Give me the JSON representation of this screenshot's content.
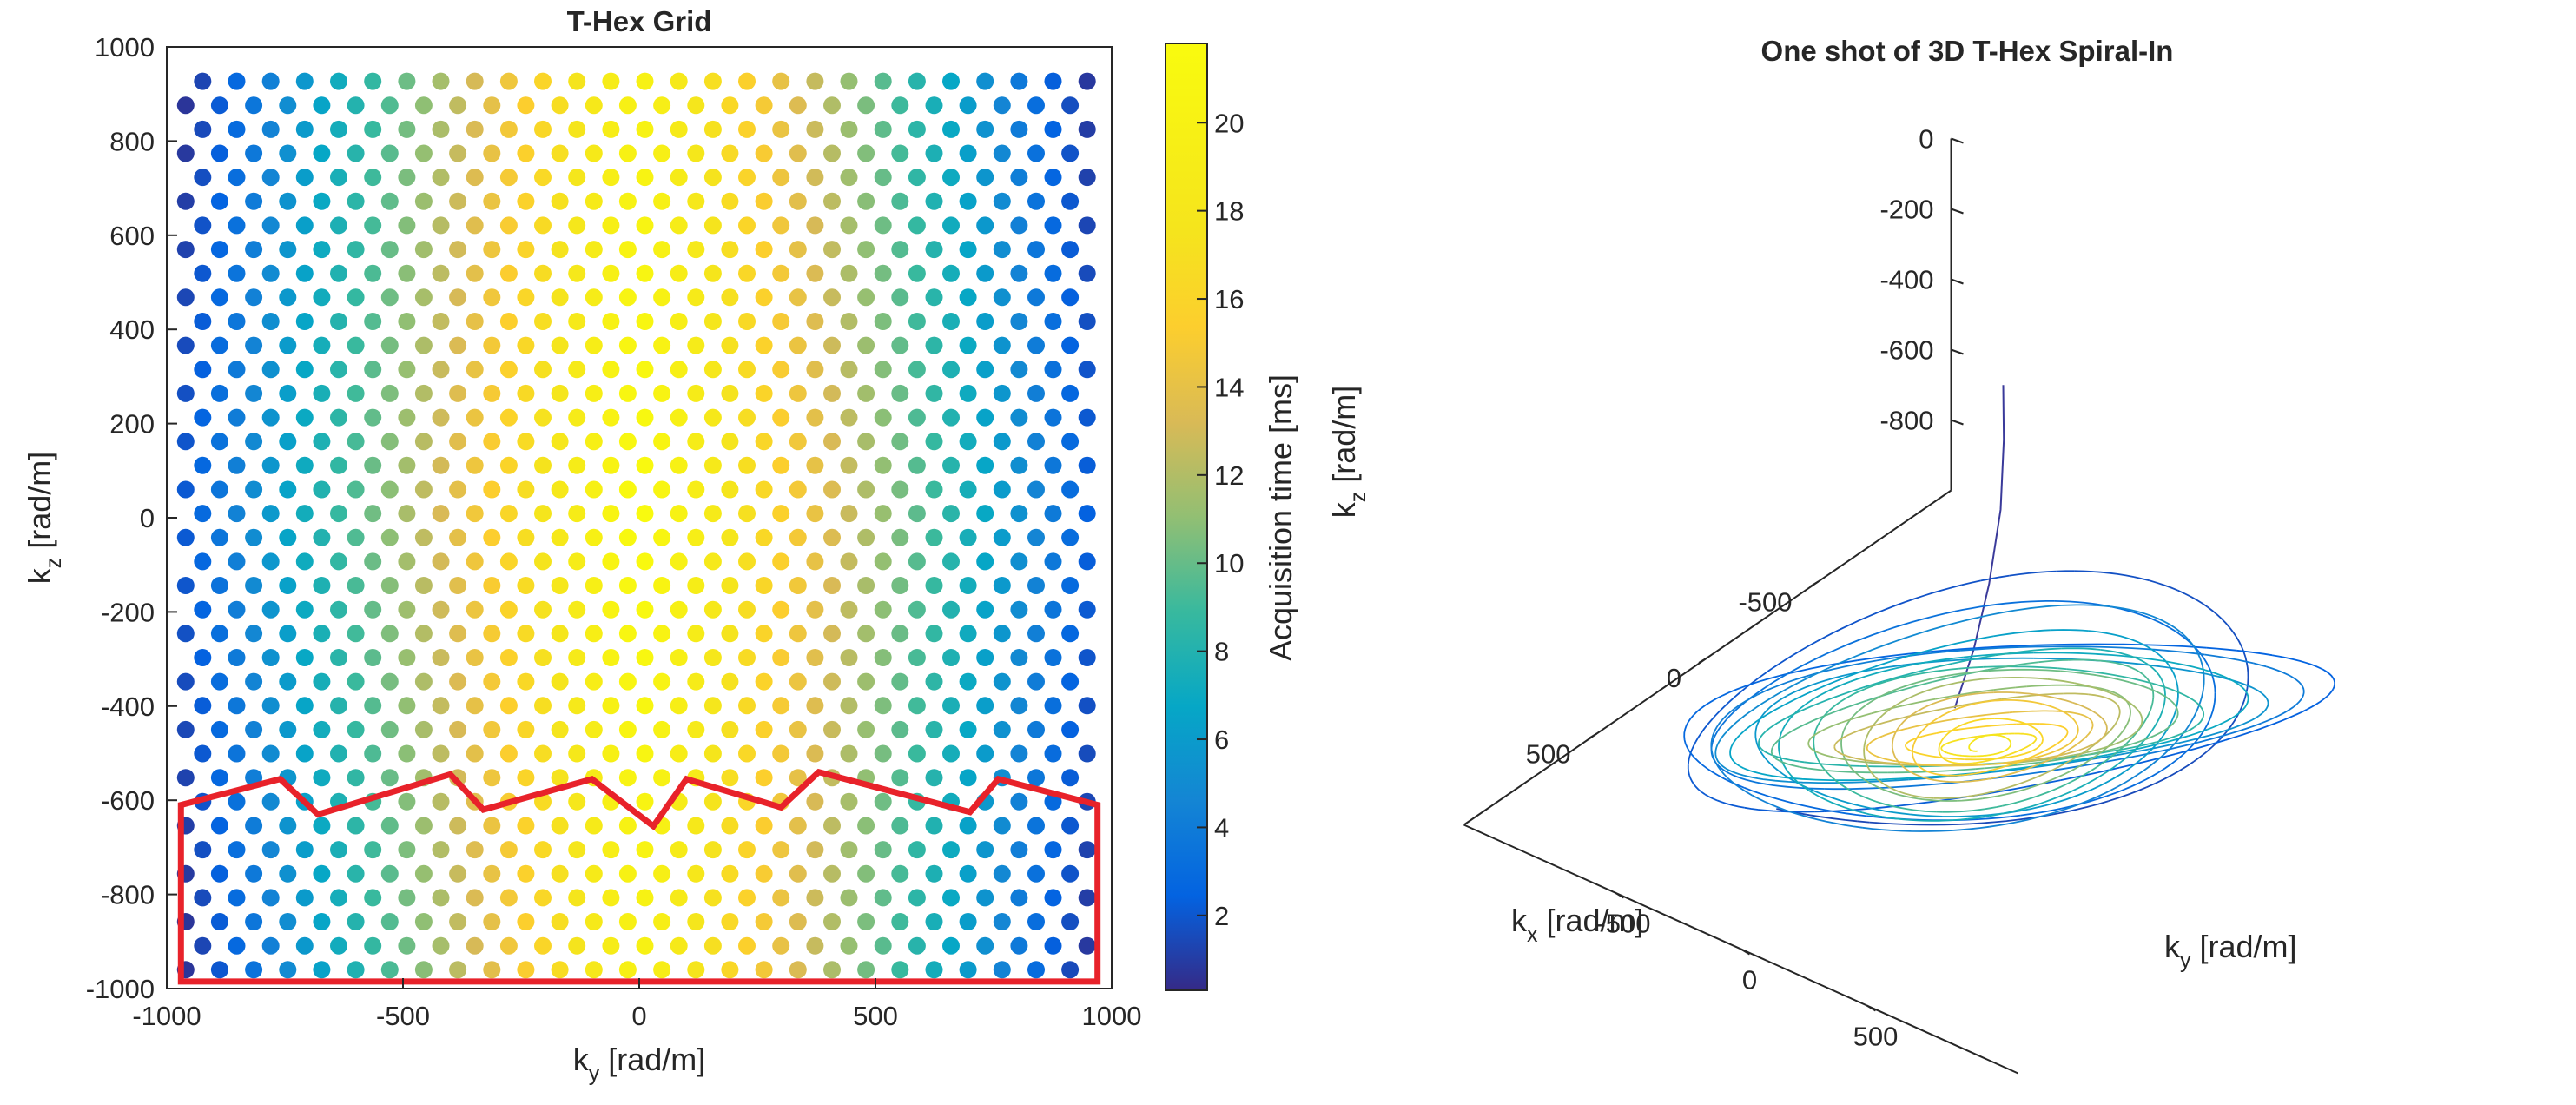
{
  "chart_data": [
    {
      "type": "scatter",
      "title": "T-Hex Grid",
      "xlabel": "k",
      "xlabel_sub": "y",
      "xlabel_unit": "[rad/m]",
      "ylabel": "k",
      "ylabel_sub": "z",
      "ylabel_unit": "[rad/m]",
      "xlim": [
        -1000,
        1000
      ],
      "ylim": [
        -1000,
        1000
      ],
      "xticks": [
        "-1000",
        "-500",
        "0",
        "500",
        "1000"
      ],
      "yticks": [
        "1000",
        "800",
        "600",
        "400",
        "200",
        "0",
        "-200",
        "-400",
        "-600",
        "-800",
        "-1000"
      ],
      "grid": {
        "description": "triangular-hexagonal sample grid of k-space points colored by acquisition time",
        "x_spacing": 72,
        "row_spacing": 102,
        "row_offset": 36,
        "x_extent": 960,
        "y_extent": 960
      },
      "colorbar": {
        "label": "Acquisition time [ms]",
        "range": [
          0.3,
          21.8
        ],
        "ticks": [
          "20",
          "18",
          "16",
          "14",
          "12",
          "10",
          "8",
          "6",
          "4",
          "2"
        ],
        "colormap": "parula"
      },
      "highlight_region": {
        "color": "#e8222a",
        "ky": [
          -970,
          -760,
          -680,
          -400,
          -330,
          -100,
          30,
          100,
          300,
          380,
          700,
          760,
          970,
          970,
          -970,
          -970
        ],
        "kz": [
          -610,
          -555,
          -630,
          -545,
          -620,
          -555,
          -655,
          -555,
          -615,
          -540,
          -625,
          -555,
          -610,
          -985,
          -985,
          -610
        ]
      }
    },
    {
      "type": "line3d",
      "title": "One shot of 3D T-Hex Spiral-In",
      "xlabel": "k",
      "xlabel_sub": "x",
      "xlabel_unit": "[rad/m]",
      "ylabel": "k",
      "ylabel_sub": "y",
      "ylabel_unit": "[rad/m]",
      "zlabel": "k",
      "zlabel_sub": "z",
      "zlabel_unit": "[rad/m]",
      "zticks": [
        "0",
        "-200",
        "-400",
        "-600",
        "-800"
      ],
      "xticks": [
        "-500",
        "0",
        "500"
      ],
      "yticks": [
        "-500",
        "0",
        "500"
      ],
      "trajectory": {
        "description": "spiral-in trajectory: outer loops (blue, early) converging to center (yellow, late)",
        "outer_radius_kxy": 900,
        "turns": 22,
        "kz_start": -200,
        "kz_end": -950
      }
    }
  ]
}
